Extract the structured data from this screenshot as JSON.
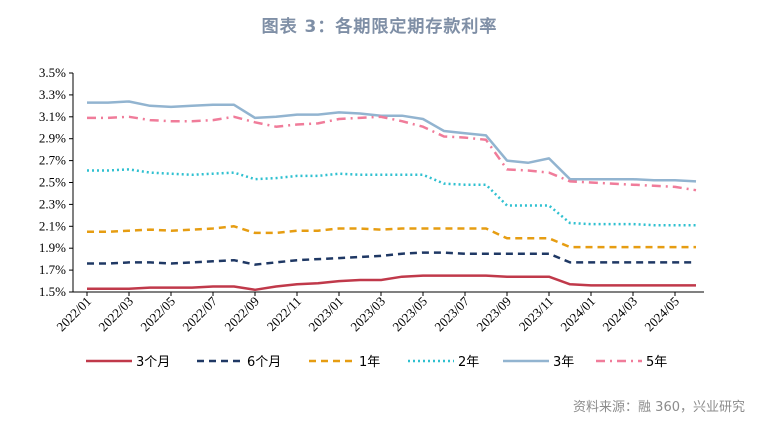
{
  "title": "图表 3：各期限定期存款利率",
  "source": "资料来源：融 360，兴业研究",
  "chart_data": {
    "type": "line",
    "title": "图表 3：各期限定期存款利率",
    "xlabel": "",
    "ylabel": "",
    "ylim": [
      1.5,
      3.5
    ],
    "yticks": [
      "3.5%",
      "3.3%",
      "3.1%",
      "2.9%",
      "2.7%",
      "2.5%",
      "2.3%",
      "2.1%",
      "1.9%",
      "1.7%",
      "1.5%"
    ],
    "ytick_values": [
      3.5,
      3.3,
      3.1,
      2.9,
      2.7,
      2.5,
      2.3,
      2.1,
      1.9,
      1.7,
      1.5
    ],
    "xticks": [
      "2022/01",
      "2022/03",
      "2022/05",
      "2022/07",
      "2022/09",
      "2022/11",
      "2023/01",
      "2023/03",
      "2023/05",
      "2023/07",
      "2023/09",
      "2023/11",
      "2024/01",
      "2024/03",
      "2024/05"
    ],
    "x": [
      "2022/01",
      "2022/02",
      "2022/03",
      "2022/04",
      "2022/05",
      "2022/06",
      "2022/07",
      "2022/08",
      "2022/09",
      "2022/10",
      "2022/11",
      "2022/12",
      "2023/01",
      "2023/02",
      "2023/03",
      "2023/04",
      "2023/05",
      "2023/06",
      "2023/07",
      "2023/08",
      "2023/09",
      "2023/10",
      "2023/11",
      "2023/12",
      "2024/01",
      "2024/02",
      "2024/03",
      "2024/04",
      "2024/05",
      "2024/06"
    ],
    "series": [
      {
        "name": "3个月",
        "color": "#c0394a",
        "dash": "solid",
        "values": [
          1.53,
          1.53,
          1.53,
          1.54,
          1.54,
          1.54,
          1.55,
          1.55,
          1.52,
          1.55,
          1.57,
          1.58,
          1.6,
          1.61,
          1.61,
          1.64,
          1.65,
          1.65,
          1.65,
          1.65,
          1.64,
          1.64,
          1.64,
          1.57,
          1.56,
          1.56,
          1.56,
          1.56,
          1.56,
          1.56
        ]
      },
      {
        "name": "6个月",
        "color": "#1f3864",
        "dash": "dash",
        "values": [
          1.76,
          1.76,
          1.77,
          1.77,
          1.76,
          1.77,
          1.78,
          1.79,
          1.75,
          1.77,
          1.79,
          1.8,
          1.81,
          1.82,
          1.83,
          1.85,
          1.86,
          1.86,
          1.85,
          1.85,
          1.85,
          1.85,
          1.85,
          1.77,
          1.77,
          1.77,
          1.77,
          1.77,
          1.77,
          1.77
        ]
      },
      {
        "name": "1年",
        "color": "#e69d12",
        "dash": "dash",
        "values": [
          2.05,
          2.05,
          2.06,
          2.07,
          2.06,
          2.07,
          2.08,
          2.1,
          2.04,
          2.04,
          2.06,
          2.06,
          2.08,
          2.08,
          2.07,
          2.08,
          2.08,
          2.08,
          2.08,
          2.08,
          1.99,
          1.99,
          1.99,
          1.91,
          1.91,
          1.91,
          1.91,
          1.91,
          1.91,
          1.91
        ]
      },
      {
        "name": "2年",
        "color": "#2fc0d0",
        "dash": "dot",
        "values": [
          2.61,
          2.61,
          2.62,
          2.59,
          2.58,
          2.57,
          2.58,
          2.59,
          2.53,
          2.54,
          2.56,
          2.56,
          2.58,
          2.57,
          2.57,
          2.57,
          2.57,
          2.49,
          2.48,
          2.48,
          2.29,
          2.29,
          2.29,
          2.13,
          2.12,
          2.12,
          2.12,
          2.11,
          2.11,
          2.11
        ]
      },
      {
        "name": "3年",
        "color": "#92b4d0",
        "dash": "solid",
        "values": [
          3.23,
          3.23,
          3.24,
          3.2,
          3.19,
          3.2,
          3.21,
          3.21,
          3.09,
          3.1,
          3.12,
          3.12,
          3.14,
          3.13,
          3.11,
          3.11,
          3.08,
          2.97,
          2.95,
          2.93,
          2.7,
          2.68,
          2.72,
          2.53,
          2.53,
          2.53,
          2.53,
          2.52,
          2.52,
          2.51
        ]
      },
      {
        "name": "5年",
        "color": "#f07c9a",
        "dash": "dashdot",
        "values": [
          3.09,
          3.09,
          3.1,
          3.07,
          3.06,
          3.06,
          3.07,
          3.1,
          3.05,
          3.01,
          3.03,
          3.04,
          3.08,
          3.09,
          3.1,
          3.06,
          3.01,
          2.92,
          2.91,
          2.89,
          2.62,
          2.61,
          2.59,
          2.51,
          2.5,
          2.49,
          2.48,
          2.47,
          2.46,
          2.43
        ]
      }
    ],
    "legend": [
      "3个月",
      "6个月",
      "1年",
      "2年",
      "3年",
      "5年"
    ],
    "legend_position": "bottom",
    "grid": false
  }
}
